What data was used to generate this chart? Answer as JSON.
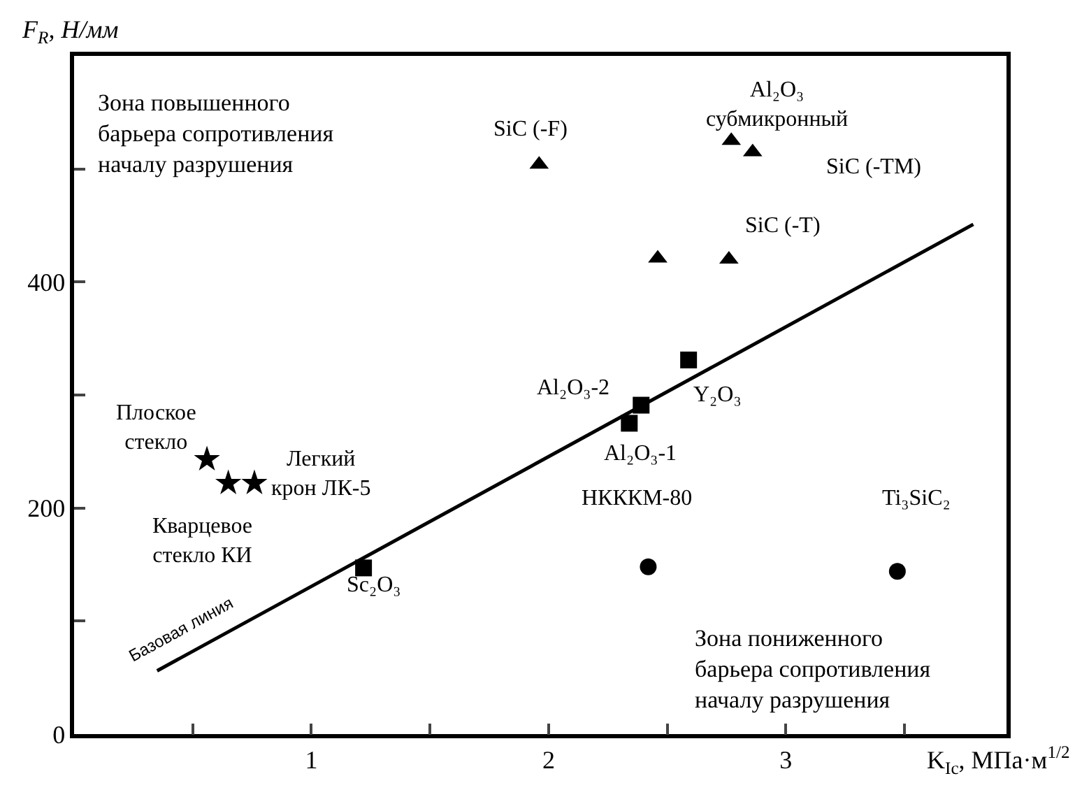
{
  "chart_data": {
    "type": "scatter",
    "xlabel": "K$_{Ic}$, МПа·м$^{1/2}$",
    "ylabel": "F$_{R}$, Н/мм",
    "xlim": [
      0,
      3.93
    ],
    "ylim": [
      0,
      600
    ],
    "xticks": [
      {
        "value": 0.5,
        "label": null
      },
      1,
      {
        "value": 1.5,
        "label": null
      },
      2,
      {
        "value": 2.5,
        "label": null
      },
      3,
      {
        "value": 3.5,
        "label": null
      }
    ],
    "yticks": [
      0,
      {
        "value": 100,
        "label": null
      },
      200,
      {
        "value": 300,
        "label": null
      },
      400,
      {
        "value": 500,
        "label": null
      }
    ],
    "series": [
      {
        "marker": "star",
        "color": "#000000",
        "x": [
          0.56,
          0.65,
          0.76
        ],
        "values": [
          243,
          222,
          222
        ]
      },
      {
        "marker": "square",
        "color": "#000000",
        "x": [
          1.22,
          2.34,
          2.39,
          2.59
        ],
        "values": [
          147,
          275,
          291,
          331
        ]
      },
      {
        "marker": "triangle",
        "color": "#000000",
        "x": [
          1.96,
          2.46,
          2.76,
          2.77,
          2.86
        ],
        "values": [
          504,
          421,
          420,
          525,
          515
        ]
      },
      {
        "marker": "circle",
        "color": "#000000",
        "x": [
          2.42,
          3.47
        ],
        "values": [
          148,
          144
        ]
      },
      {
        "type": "line",
        "line_style": "solid",
        "color": "#000000",
        "x": [
          0.35,
          3.79
        ],
        "values": [
          56,
          451
        ]
      }
    ],
    "annotations": [
      "Зона повышенного\nбарьера сопротивления\nначалу разрушения",
      "Зона пониженного\nбарьера сопротивления\nначалу разрушения",
      "Плоское\nстекло",
      "Легкий\nкрон ЛК-5",
      "Кварцевое\nстекло КИ",
      "Sc₂O₃",
      "Al₂O₃-2",
      "Al₂O₃-1",
      "Y₂O₃",
      "SiC (-F)",
      "SiC (-T)",
      "SiC (-TM)",
      "Al₂O₃\nсубмикронный",
      "НКККМ-80",
      "Ti₃SiC₂",
      "Базовая линия"
    ]
  }
}
